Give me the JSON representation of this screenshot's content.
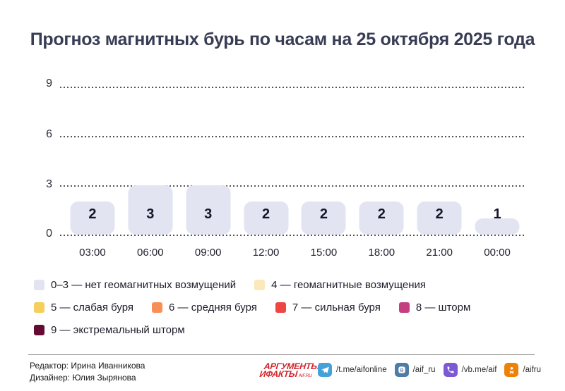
{
  "title": "Прогноз магнитных бурь по часам на 25 октября 2025 года",
  "chart_data": {
    "type": "bar",
    "title": "Прогноз магнитных бурь по часам на 25 октября 2025 года",
    "categories": [
      "03:00",
      "06:00",
      "09:00",
      "12:00",
      "15:00",
      "18:00",
      "21:00",
      "00:00"
    ],
    "values": [
      2,
      3,
      3,
      2,
      2,
      2,
      2,
      1
    ],
    "xlabel": "",
    "ylabel": "",
    "ylim": [
      0,
      9
    ],
    "yticks": [
      0,
      3,
      6,
      9
    ],
    "grid": "horizontal-dotted",
    "bar_color": "#e2e5f1",
    "value_label_color": "#16162a",
    "legend_position": "bottom"
  },
  "yaxis": {
    "ticks_top_to_bottom": [
      "9",
      "6",
      "3",
      "0"
    ]
  },
  "legend": {
    "rows": [
      [
        {
          "label": "0–3 — нет геомагнитных возмущений",
          "color": "#e2e5f1"
        },
        {
          "label": "4 — геомагнитные возмущения",
          "color": "#fbe9bc"
        }
      ],
      [
        {
          "label": "5 — слабая буря",
          "color": "#f6ce5d"
        },
        {
          "label": "6 — средняя буря",
          "color": "#f78f58"
        },
        {
          "label": "7 — сильная буря",
          "color": "#ee4643"
        },
        {
          "label": "8 — шторм",
          "color": "#c33f80"
        }
      ],
      [
        {
          "label": "9 — экстремальный шторм",
          "color": "#650b33"
        }
      ]
    ]
  },
  "footer": {
    "editor": "Редактор: Ирина Иванникова",
    "designer": "Дизайнер: Юлия Зырянова",
    "logo": {
      "line1": "АРГУМЕНТЫ",
      "line2": "ИФАКТЫ",
      "suffix": "AIF.RU",
      "color": "#d3252b"
    },
    "socials": [
      {
        "icon": "telegram-icon",
        "handle": "/t.me/aifonline",
        "color": "#45a1da"
      },
      {
        "icon": "vk-icon",
        "handle": "/aif_ru",
        "color": "#4e7ca6"
      },
      {
        "icon": "viber-icon",
        "handle": "/vb.me/aif",
        "color": "#7c5ad2"
      },
      {
        "icon": "ok-icon",
        "handle": "/aifru",
        "color": "#ee8208"
      }
    ]
  }
}
